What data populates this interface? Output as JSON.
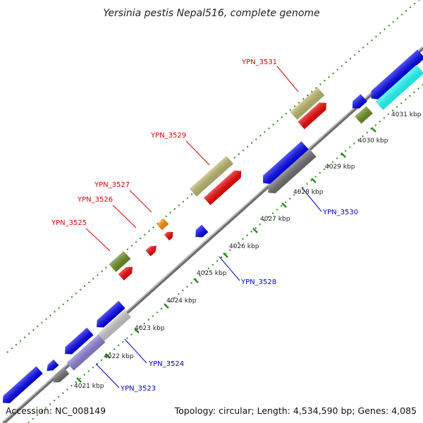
{
  "title": "Yersinia pestis Nepal516, complete genome",
  "footer": {
    "accession": "Accession: NC_008149",
    "summary": "Topology: circular; Length: 4,534,590 bp; Genes: 4,085"
  },
  "colors": {
    "backbone": "#8c8c8c",
    "dotted_track": "#2e8b1e",
    "forward_label": "#dd0000",
    "reverse_label": "#0000cc"
  },
  "ticks": [
    "4021 kbp",
    "4022 kbp",
    "4023 kbp",
    "4024 kbp",
    "4025 kbp",
    "4026 kbp",
    "4027 kbp",
    "4028 kbp",
    "4029 kbp",
    "4030 kbp",
    "4031 kbp"
  ],
  "gene_labels": [
    {
      "name": "YPN_3525",
      "strand": "forward"
    },
    {
      "name": "YPN_3526",
      "strand": "forward"
    },
    {
      "name": "YPN_3527",
      "strand": "forward"
    },
    {
      "name": "YPN_3529",
      "strand": "forward"
    },
    {
      "name": "YPN_3531",
      "strand": "forward"
    },
    {
      "name": "YPN_3523",
      "strand": "reverse"
    },
    {
      "name": "YPN_3524",
      "strand": "reverse"
    },
    {
      "name": "YPN_3528",
      "strand": "reverse"
    },
    {
      "name": "YPN_3530",
      "strand": "reverse"
    }
  ]
}
